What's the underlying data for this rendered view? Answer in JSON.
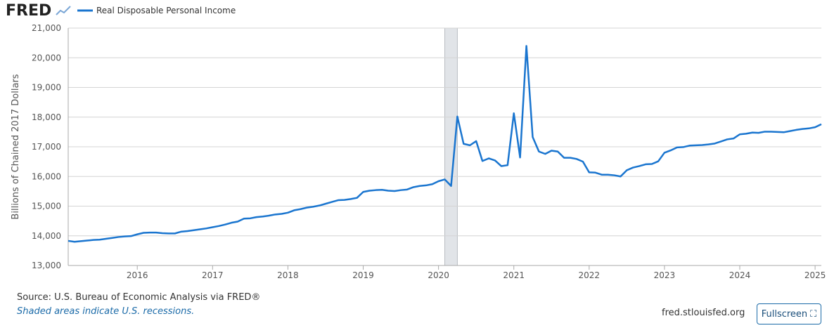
{
  "logo": "FRED",
  "chart_data": {
    "type": "line",
    "ylabel": "Billions of Chained 2017 Dollars",
    "x": [
      2015.083,
      2015.167,
      2015.25,
      2015.333,
      2015.417,
      2015.5,
      2015.583,
      2015.667,
      2015.75,
      2015.833,
      2015.917,
      2016,
      2016.083,
      2016.167,
      2016.25,
      2016.333,
      2016.417,
      2016.5,
      2016.583,
      2016.667,
      2016.75,
      2016.833,
      2016.917,
      2017,
      2017.083,
      2017.167,
      2017.25,
      2017.333,
      2017.417,
      2017.5,
      2017.583,
      2017.667,
      2017.75,
      2017.833,
      2017.917,
      2018,
      2018.083,
      2018.167,
      2018.25,
      2018.333,
      2018.417,
      2018.5,
      2018.583,
      2018.667,
      2018.75,
      2018.833,
      2018.917,
      2019,
      2019.083,
      2019.167,
      2019.25,
      2019.333,
      2019.417,
      2019.5,
      2019.583,
      2019.667,
      2019.75,
      2019.833,
      2019.917,
      2020,
      2020.083,
      2020.167,
      2020.25,
      2020.333,
      2020.417,
      2020.5,
      2020.583,
      2020.667,
      2020.75,
      2020.833,
      2020.917,
      2021,
      2021.083,
      2021.167,
      2021.25,
      2021.333,
      2021.417,
      2021.5,
      2021.583,
      2021.667,
      2021.75,
      2021.833,
      2021.917,
      2022,
      2022.083,
      2022.167,
      2022.25,
      2022.333,
      2022.417,
      2022.5,
      2022.583,
      2022.667,
      2022.75,
      2022.833,
      2022.917,
      2023,
      2023.083,
      2023.167,
      2023.25,
      2023.333,
      2023.417,
      2023.5,
      2023.583,
      2023.667,
      2023.75,
      2023.833,
      2023.917,
      2024,
      2024.083,
      2024.167,
      2024.25,
      2024.333,
      2024.417,
      2024.5,
      2024.583,
      2024.667,
      2024.75,
      2024.833,
      2024.917,
      2025,
      2025.083
    ],
    "series": [
      {
        "name": "Real Disposable Personal Income",
        "color": "#1a75cf",
        "values": [
          13830,
          13800,
          13820,
          13840,
          13860,
          13870,
          13900,
          13930,
          13960,
          13980,
          13990,
          14050,
          14100,
          14110,
          14110,
          14090,
          14080,
          14080,
          14140,
          14160,
          14190,
          14220,
          14250,
          14290,
          14330,
          14380,
          14440,
          14480,
          14580,
          14590,
          14630,
          14650,
          14680,
          14720,
          14740,
          14780,
          14860,
          14900,
          14950,
          14980,
          15020,
          15080,
          15140,
          15200,
          15210,
          15240,
          15280,
          15480,
          15520,
          15540,
          15550,
          15520,
          15510,
          15540,
          15560,
          15640,
          15680,
          15700,
          15740,
          15840,
          15900,
          15680,
          18020,
          17100,
          17050,
          17190,
          16520,
          16610,
          16540,
          16350,
          16380,
          18130,
          16640,
          20400,
          17330,
          16840,
          16760,
          16870,
          16840,
          16630,
          16630,
          16590,
          16500,
          16140,
          16130,
          16060,
          16060,
          16040,
          16000,
          16210,
          16300,
          16350,
          16410,
          16420,
          16510,
          16800,
          16880,
          16980,
          16990,
          17040,
          17050,
          17060,
          17080,
          17110,
          17180,
          17250,
          17280,
          17420,
          17440,
          17480,
          17470,
          17510,
          17510,
          17500,
          17490,
          17530,
          17570,
          17600,
          17620,
          17660,
          17760
        ]
      }
    ],
    "recessions": [
      {
        "start": 2020.083,
        "end": 2020.25
      }
    ],
    "xlim": [
      2015.083,
      2025.083
    ],
    "xticks": [
      2016,
      2017,
      2018,
      2019,
      2020,
      2021,
      2022,
      2023,
      2024,
      2025
    ],
    "ylim": [
      13000,
      21000
    ],
    "yticks": [
      {
        "value": 13000,
        "label": "13,000"
      },
      {
        "value": 14000,
        "label": "14,000"
      },
      {
        "value": 15000,
        "label": "15,000"
      },
      {
        "value": 16000,
        "label": "16,000"
      },
      {
        "value": 17000,
        "label": "17,000"
      },
      {
        "value": 18000,
        "label": "18,000"
      },
      {
        "value": 19000,
        "label": "19,000"
      },
      {
        "value": 20000,
        "label": "20,000"
      },
      {
        "value": 21000,
        "label": "21,000"
      }
    ],
    "grid": true
  },
  "footer": {
    "source": "Source: U.S. Bureau of Economic Analysis via FRED®",
    "note": "Shaded areas indicate U.S. recessions.",
    "site": "fred.stlouisfed.org",
    "button": "Fullscreen"
  }
}
